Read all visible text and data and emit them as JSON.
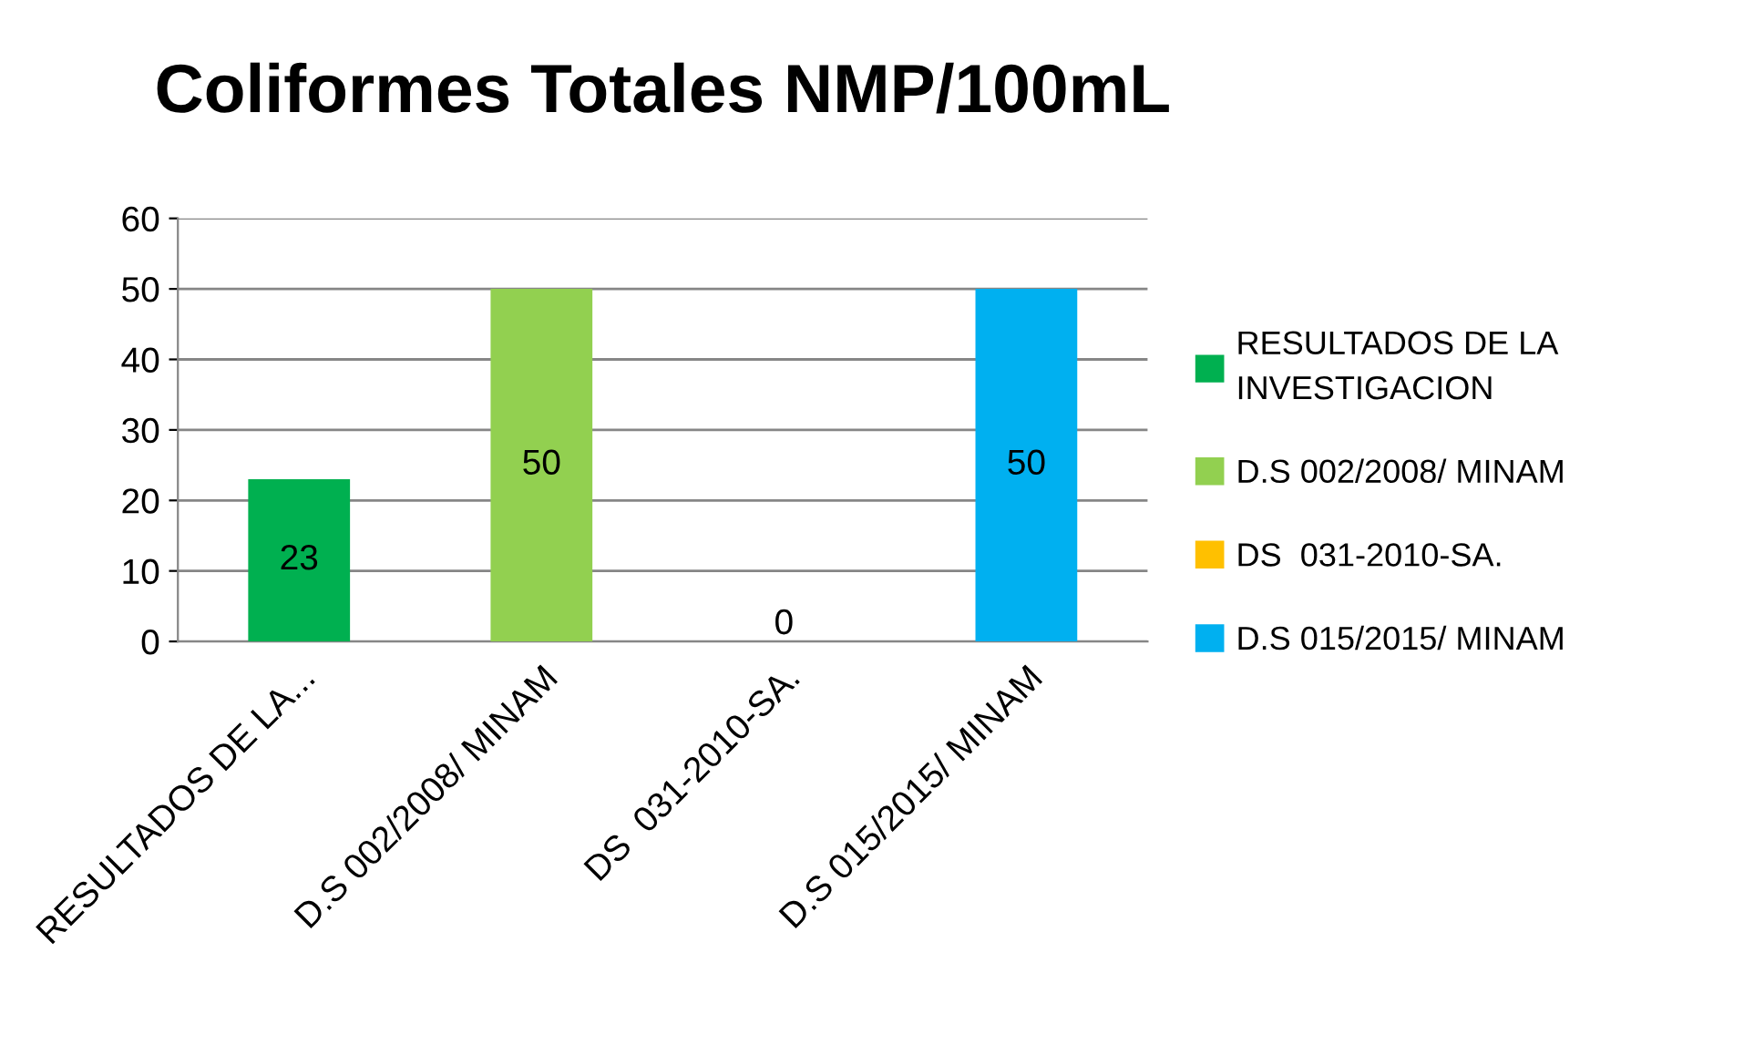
{
  "chart_data": {
    "type": "bar",
    "title": "Coliformes Totales NMP/100mL",
    "categories": [
      "RESULTADOS DE LA...",
      "D.S 002/2008/ MINAM",
      "DS  031-2010-SA.",
      "D.S 015/2015/ MINAM"
    ],
    "series": [
      {
        "name": "RESULTADOS DE LA INVESTIGACION",
        "color": "#00b050",
        "values": [
          23,
          null,
          null,
          null
        ]
      },
      {
        "name": "D.S 002/2008/ MINAM",
        "color": "#92d050",
        "values": [
          null,
          50,
          null,
          null
        ]
      },
      {
        "name": "DS  031-2010-SA.",
        "color": "#ffc000",
        "values": [
          null,
          null,
          0,
          null
        ]
      },
      {
        "name": "D.S 015/2015/ MINAM",
        "color": "#00b0f0",
        "values": [
          null,
          null,
          null,
          50
        ]
      }
    ],
    "ylim": [
      0,
      60
    ],
    "yticks": [
      0,
      10,
      20,
      30,
      40,
      50,
      60
    ],
    "grid": "y",
    "legend": "right",
    "data_labels": true
  }
}
